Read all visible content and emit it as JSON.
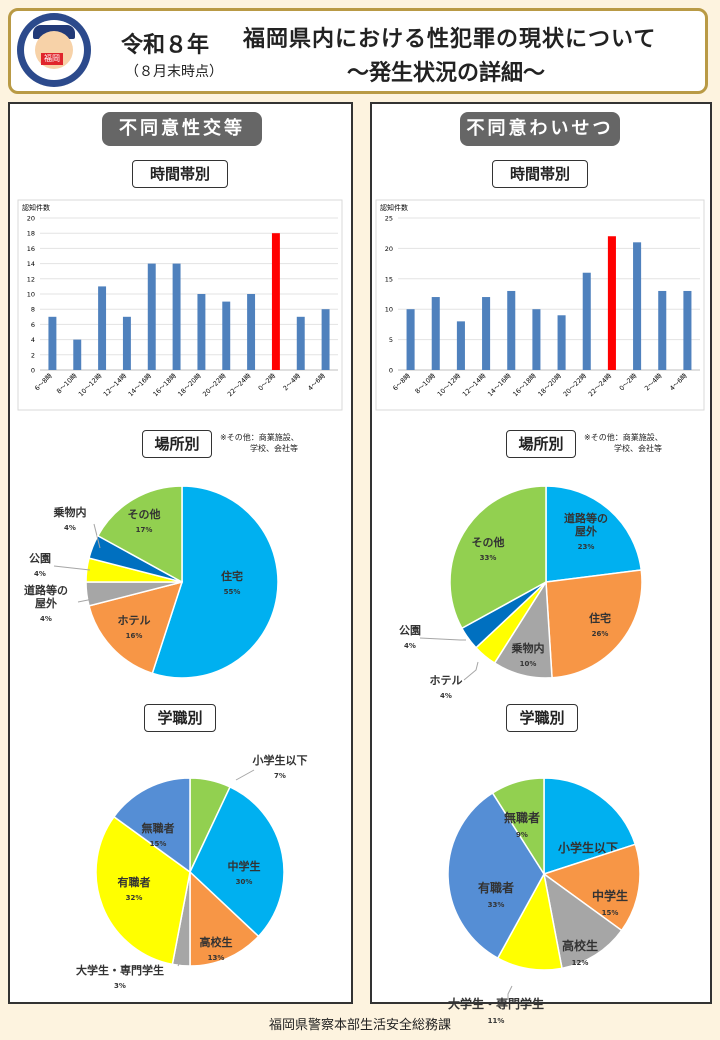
{
  "header": {
    "year": "令和８年",
    "as_of": "（８月末時点）",
    "title": "福岡県内における性犯罪の現状について",
    "subtitle": "～発生状況の詳細～",
    "badge_text": "福岡"
  },
  "panels": [
    {
      "title": "不同意性交等",
      "time_section": "時間帯別",
      "place_section": "場所別",
      "place_note": [
        "※その他：商業施設、",
        "学校、会社等"
      ],
      "job_section": "学職別"
    },
    {
      "title": "不同意わいせつ",
      "time_section": "時間帯別",
      "place_section": "場所別",
      "place_note": [
        "※その他：商業施設、",
        "学校、会社等"
      ],
      "job_section": "学職別"
    }
  ],
  "footer": "福岡県警察本部生活安全総務課",
  "colors": {
    "bar": "#4f81bd",
    "bar_highlight": "#ff0000",
    "blue": "#00b0f0",
    "orange": "#f79646",
    "gray": "#a6a6a6",
    "yellow": "#ffff00",
    "navy": "#0070c0",
    "green": "#92d050",
    "steel": "#558ed5"
  },
  "chart_data": [
    {
      "type": "bar",
      "chart": "rape_time",
      "ylabel": "認知件数",
      "ylim": [
        0,
        20
      ],
      "yticks": [
        0,
        2,
        4,
        6,
        8,
        10,
        12,
        14,
        16,
        18,
        20
      ],
      "categories": [
        "6～8時",
        "8～10時",
        "10～12時",
        "12～14時",
        "14～16時",
        "16～18時",
        "18～20時",
        "20～22時",
        "22～24時",
        "0～2時",
        "2～4時",
        "4～6時"
      ],
      "values": [
        7,
        4,
        11,
        7,
        14,
        14,
        10,
        9,
        10,
        18,
        7,
        8
      ],
      "highlight_index": 9,
      "grid": true
    },
    {
      "type": "pie",
      "chart": "rape_place",
      "slices": [
        {
          "label": "住宅",
          "percent": "55%",
          "value": 55,
          "color": "#00b0f0"
        },
        {
          "label": "ホテル",
          "percent": "16%",
          "value": 16,
          "color": "#f79646"
        },
        {
          "label": "道路等の屋外",
          "percent": "4%",
          "value": 4,
          "color": "#a6a6a6"
        },
        {
          "label": "公園",
          "percent": "4%",
          "value": 4,
          "color": "#ffff00"
        },
        {
          "label": "乗物内",
          "percent": "4%",
          "value": 4,
          "color": "#0070c0"
        },
        {
          "label": "その他",
          "percent": "17%",
          "value": 17,
          "color": "#92d050"
        }
      ]
    },
    {
      "type": "pie",
      "chart": "rape_job",
      "slices": [
        {
          "label": "小学生以下",
          "percent": "7%",
          "value": 7,
          "color": "#92d050"
        },
        {
          "label": "中学生",
          "percent": "30%",
          "value": 30,
          "color": "#00b0f0"
        },
        {
          "label": "高校生",
          "percent": "13%",
          "value": 13,
          "color": "#f79646"
        },
        {
          "label": "大学生・専門学生",
          "percent": "3%",
          "value": 3,
          "color": "#a6a6a6"
        },
        {
          "label": "有職者",
          "percent": "32%",
          "value": 32,
          "color": "#ffff00"
        },
        {
          "label": "無職者",
          "percent": "15%",
          "value": 15,
          "color": "#558ed5"
        }
      ]
    },
    {
      "type": "bar",
      "chart": "indecent_time",
      "ylabel": "認知件数",
      "ylim": [
        0,
        25
      ],
      "yticks": [
        0,
        5,
        10,
        15,
        20,
        25
      ],
      "categories": [
        "6～8時",
        "8～10時",
        "10～12時",
        "12～14時",
        "14～16時",
        "16～18時",
        "18～20時",
        "20～22時",
        "22～24時",
        "0～2時",
        "2～4時",
        "4～6時"
      ],
      "values": [
        10,
        12,
        8,
        12,
        13,
        10,
        9,
        16,
        22,
        21,
        13,
        13
      ],
      "highlight_index": 8,
      "grid": true
    },
    {
      "type": "pie",
      "chart": "indecent_place",
      "slices": [
        {
          "label": "道路等の屋外",
          "percent": "23%",
          "value": 23,
          "color": "#00b0f0"
        },
        {
          "label": "住宅",
          "percent": "26%",
          "value": 26,
          "color": "#f79646"
        },
        {
          "label": "乗物内",
          "percent": "10%",
          "value": 10,
          "color": "#a6a6a6"
        },
        {
          "label": "ホテル",
          "percent": "4%",
          "value": 4,
          "color": "#ffff00"
        },
        {
          "label": "公園",
          "percent": "4%",
          "value": 4,
          "color": "#0070c0"
        },
        {
          "label": "その他",
          "percent": "33%",
          "value": 33,
          "color": "#92d050"
        }
      ]
    },
    {
      "type": "pie",
      "chart": "indecent_job",
      "slices": [
        {
          "label": "小学生以下",
          "percent": "20%",
          "value": 20,
          "color": "#00b0f0"
        },
        {
          "label": "中学生",
          "percent": "15%",
          "value": 15,
          "color": "#f79646"
        },
        {
          "label": "高校生",
          "percent": "12%",
          "value": 12,
          "color": "#a6a6a6"
        },
        {
          "label": "大学生・専門学生",
          "percent": "11%",
          "value": 11,
          "color": "#ffff00"
        },
        {
          "label": "有職者",
          "percent": "33%",
          "value": 33,
          "color": "#558ed5"
        },
        {
          "label": "無職者",
          "percent": "9%",
          "value": 9,
          "color": "#92d050"
        }
      ]
    }
  ]
}
